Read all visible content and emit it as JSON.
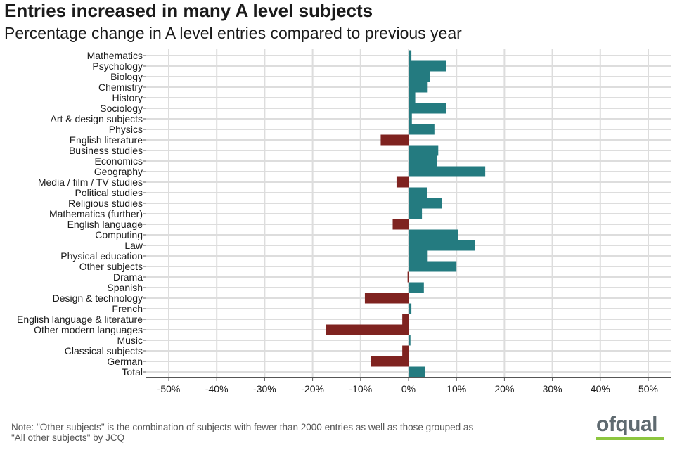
{
  "header": {
    "title": "Entries increased in many A level subjects",
    "subtitle": "Percentage change in A level entries compared to previous year"
  },
  "note": {
    "line1": "Note: \"Other subjects\" is the combination of subjects with fewer than 2000 entries as well as those grouped as",
    "line2": "\"All other subjects\" by JCQ"
  },
  "logo": {
    "text": "ofqual",
    "accent_color": "#8dc63f"
  },
  "colors": {
    "positive": "#247b80",
    "negative": "#7f2320",
    "grid": "#dddddd",
    "axis": "#555555"
  },
  "chart_data": {
    "type": "bar",
    "orientation": "horizontal",
    "title": "Entries increased in many A level subjects",
    "subtitle": "Percentage change in A level entries compared to previous year",
    "xlabel": "",
    "ylabel": "",
    "xlim": [
      -55,
      55
    ],
    "x_ticks": [
      -50,
      -40,
      -30,
      -20,
      -10,
      0,
      10,
      20,
      30,
      40,
      50
    ],
    "x_tick_labels": [
      "-50%",
      "-40%",
      "-30%",
      "-20%",
      "-10%",
      "0%",
      "10%",
      "20%",
      "30%",
      "40%",
      "50%"
    ],
    "grid": true,
    "categories": [
      "Mathematics",
      "Psychology",
      "Biology",
      "Chemistry",
      "History",
      "Sociology",
      "Art & design subjects",
      "Physics",
      "English literature",
      "Business studies",
      "Economics",
      "Geography",
      "Media / film / TV studies",
      "Political studies",
      "Religious studies",
      "Mathematics (further)",
      "English language",
      "Computing",
      "Law",
      "Physical education",
      "Other subjects",
      "Drama",
      "Spanish",
      "Design & technology",
      "French",
      "English language & literature",
      "Other modern languages",
      "Music",
      "Classical subjects",
      "German",
      "Total"
    ],
    "values": [
      0.6,
      7.8,
      4.4,
      4.0,
      1.4,
      7.8,
      0.7,
      5.4,
      -5.8,
      6.2,
      6.0,
      16.0,
      -2.5,
      3.9,
      6.9,
      2.8,
      -3.3,
      10.3,
      13.9,
      4.0,
      10.0,
      -0.2,
      3.2,
      -9.1,
      0.6,
      -1.3,
      -17.3,
      0.4,
      -1.3,
      -7.9,
      3.5
    ]
  }
}
